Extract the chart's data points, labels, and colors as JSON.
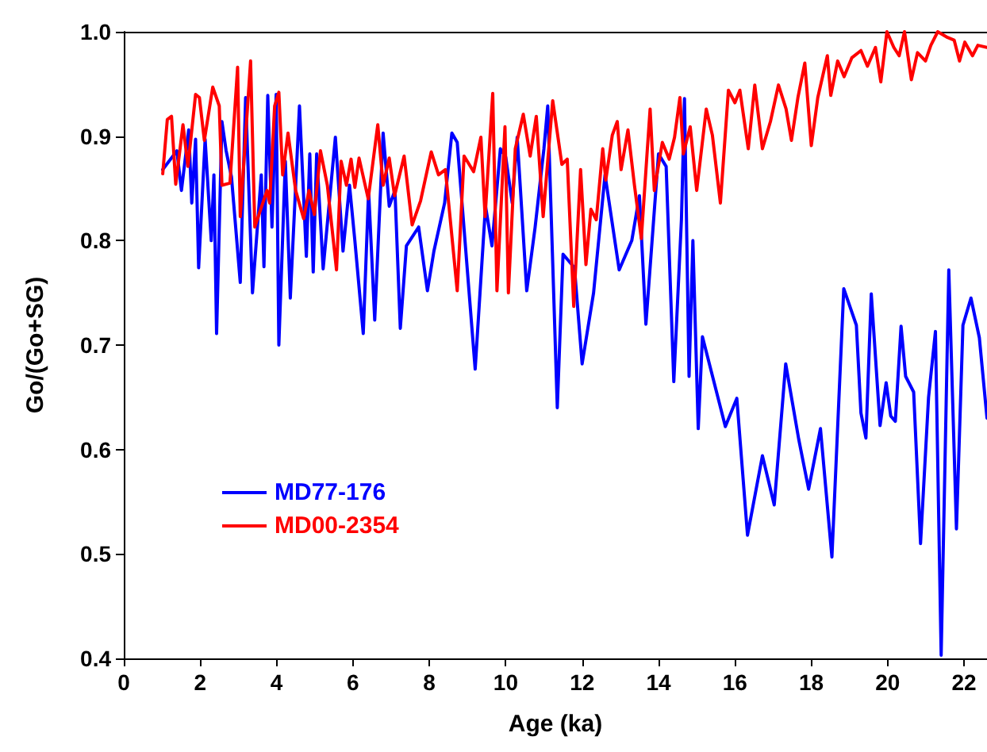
{
  "chart_data": {
    "type": "line",
    "xlabel": "Age (ka)",
    "ylabel": "Go/(Go+SG)",
    "xlim": [
      0,
      22.6
    ],
    "xticks": [
      0,
      2,
      4,
      6,
      8,
      10,
      12,
      14,
      16,
      18,
      20,
      22
    ],
    "ylim": [
      0.4,
      1.0
    ],
    "yticks": [
      {
        "value": 0.4,
        "label": "0.4"
      },
      {
        "value": 0.5,
        "label": "0.5"
      },
      {
        "value": 0.6,
        "label": "0.6"
      },
      {
        "value": 0.7,
        "label": "0.7"
      },
      {
        "value": 0.8,
        "label": "0.8"
      },
      {
        "value": 0.9,
        "label": "0.9"
      },
      {
        "value": 1.0,
        "label": "1.0"
      }
    ],
    "grid": false,
    "legend": "bottom left",
    "marker": "none",
    "line_style": "solid",
    "series": [
      {
        "name": "MD77-176",
        "color": "#0000ff",
        "x": [
          1.02,
          1.39,
          1.51,
          1.7,
          1.78,
          1.88,
          1.96,
          2.13,
          2.29,
          2.36,
          2.43,
          2.57,
          2.68,
          2.82,
          3.05,
          3.19,
          3.37,
          3.6,
          3.67,
          3.77,
          3.88,
          3.99,
          4.06,
          4.23,
          4.36,
          4.6,
          4.78,
          4.87,
          4.96,
          5.05,
          5.22,
          5.54,
          5.74,
          5.91,
          6.05,
          6.27,
          6.41,
          6.57,
          6.79,
          6.95,
          7.1,
          7.24,
          7.4,
          7.72,
          7.95,
          8.12,
          8.4,
          8.59,
          8.73,
          9.2,
          9.47,
          9.64,
          9.86,
          10.0,
          10.17,
          10.3,
          10.55,
          10.77,
          11.0,
          11.1,
          11.35,
          11.5,
          11.8,
          12.0,
          12.3,
          12.6,
          12.97,
          13.3,
          13.5,
          13.67,
          14.0,
          14.2,
          14.4,
          14.6,
          14.68,
          14.8,
          14.9,
          15.04,
          15.15,
          15.75,
          16.05,
          16.33,
          16.72,
          17.03,
          17.33,
          17.67,
          17.93,
          18.24,
          18.54,
          18.85,
          19.18,
          19.3,
          19.43,
          19.57,
          19.8,
          19.96,
          20.08,
          20.2,
          20.35,
          20.47,
          20.68,
          20.86,
          21.07,
          21.25,
          21.4,
          21.6,
          21.8,
          21.97,
          22.18,
          22.4,
          22.6
        ],
        "values": [
          0.868,
          0.886,
          0.848,
          0.906,
          0.836,
          0.897,
          0.774,
          0.897,
          0.8,
          0.863,
          0.711,
          0.914,
          0.886,
          0.861,
          0.76,
          0.937,
          0.75,
          0.863,
          0.775,
          0.939,
          0.813,
          0.94,
          0.7,
          0.876,
          0.745,
          0.929,
          0.785,
          0.883,
          0.77,
          0.883,
          0.773,
          0.899,
          0.79,
          0.853,
          0.8,
          0.711,
          0.848,
          0.724,
          0.903,
          0.833,
          0.848,
          0.716,
          0.795,
          0.813,
          0.752,
          0.79,
          0.836,
          0.903,
          0.894,
          0.677,
          0.833,
          0.795,
          0.888,
          0.88,
          0.836,
          0.899,
          0.752,
          0.813,
          0.888,
          0.929,
          0.64,
          0.787,
          0.774,
          0.682,
          0.75,
          0.863,
          0.772,
          0.8,
          0.843,
          0.72,
          0.883,
          0.871,
          0.665,
          0.82,
          0.936,
          0.67,
          0.8,
          0.62,
          0.708,
          0.622,
          0.649,
          0.518,
          0.594,
          0.547,
          0.682,
          0.61,
          0.562,
          0.62,
          0.497,
          0.754,
          0.719,
          0.635,
          0.611,
          0.749,
          0.623,
          0.664,
          0.632,
          0.627,
          0.718,
          0.67,
          0.655,
          0.51,
          0.65,
          0.713,
          0.403,
          0.772,
          0.524,
          0.719,
          0.745,
          0.707,
          0.63
        ]
      },
      {
        "name": "MD00-2354",
        "color": "#ff0000",
        "x": [
          1.02,
          1.14,
          1.25,
          1.36,
          1.55,
          1.68,
          1.88,
          1.98,
          2.11,
          2.33,
          2.5,
          2.57,
          2.78,
          2.98,
          3.05,
          3.32,
          3.43,
          3.75,
          3.82,
          3.95,
          4.06,
          4.16,
          4.3,
          4.5,
          4.71,
          4.85,
          4.99,
          5.15,
          5.33,
          5.57,
          5.69,
          5.83,
          5.95,
          6.05,
          6.16,
          6.4,
          6.65,
          6.79,
          6.95,
          7.09,
          7.34,
          7.55,
          7.77,
          8.05,
          8.24,
          8.42,
          8.73,
          8.91,
          9.16,
          9.35,
          9.46,
          9.66,
          9.77,
          9.98,
          10.07,
          10.25,
          10.46,
          10.64,
          10.8,
          10.98,
          11.23,
          11.47,
          11.61,
          11.78,
          11.96,
          12.1,
          12.23,
          12.37,
          12.54,
          12.62,
          12.79,
          12.92,
          13.02,
          13.2,
          13.37,
          13.55,
          13.69,
          13.78,
          13.89,
          14.1,
          14.28,
          14.42,
          14.56,
          14.65,
          14.83,
          15.0,
          15.25,
          15.41,
          15.62,
          15.83,
          16.0,
          16.13,
          16.35,
          16.52,
          16.72,
          16.93,
          17.14,
          17.34,
          17.48,
          17.65,
          17.83,
          18.0,
          18.17,
          18.42,
          18.51,
          18.69,
          18.86,
          19.06,
          19.3,
          19.47,
          19.68,
          19.82,
          19.98,
          20.16,
          20.3,
          20.44,
          20.62,
          20.78,
          20.99,
          21.13,
          21.31,
          21.54,
          21.74,
          21.88,
          22.02,
          22.22,
          22.36,
          22.6
        ],
        "values": [
          0.864,
          0.916,
          0.919,
          0.854,
          0.911,
          0.871,
          0.94,
          0.937,
          0.896,
          0.947,
          0.929,
          0.853,
          0.855,
          0.966,
          0.823,
          0.972,
          0.813,
          0.848,
          0.836,
          0.929,
          0.942,
          0.863,
          0.903,
          0.848,
          0.821,
          0.848,
          0.825,
          0.886,
          0.853,
          0.772,
          0.876,
          0.853,
          0.878,
          0.851,
          0.879,
          0.84,
          0.911,
          0.853,
          0.879,
          0.843,
          0.881,
          0.815,
          0.838,
          0.885,
          0.863,
          0.868,
          0.752,
          0.881,
          0.866,
          0.899,
          0.823,
          0.941,
          0.752,
          0.909,
          0.75,
          0.888,
          0.921,
          0.881,
          0.919,
          0.823,
          0.934,
          0.873,
          0.878,
          0.737,
          0.868,
          0.777,
          0.83,
          0.82,
          0.888,
          0.858,
          0.901,
          0.914,
          0.868,
          0.906,
          0.853,
          0.802,
          0.878,
          0.926,
          0.848,
          0.894,
          0.878,
          0.899,
          0.937,
          0.883,
          0.909,
          0.848,
          0.926,
          0.901,
          0.836,
          0.944,
          0.932,
          0.944,
          0.888,
          0.949,
          0.888,
          0.914,
          0.949,
          0.926,
          0.896,
          0.937,
          0.97,
          0.891,
          0.937,
          0.977,
          0.939,
          0.972,
          0.957,
          0.975,
          0.982,
          0.967,
          0.985,
          0.952,
          1.0,
          0.985,
          0.977,
          1.0,
          0.954,
          0.98,
          0.972,
          0.987,
          1.0,
          0.995,
          0.992,
          0.972,
          0.99,
          0.977,
          0.987,
          0.985
        ]
      }
    ]
  }
}
